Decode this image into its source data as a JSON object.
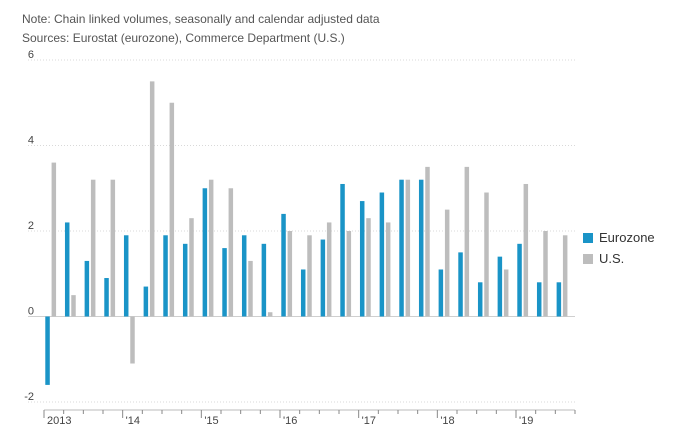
{
  "notes": {
    "line1": "Note: Chain linked volumes, seasonally and calendar adjusted data",
    "line2": "Sources: Eurostat (eurozone), Commerce Department (U.S.)"
  },
  "chart_data": {
    "type": "bar",
    "title": "",
    "xlabel": "",
    "ylabel": "",
    "ylim": [
      -2,
      6
    ],
    "yticks": [
      "-2",
      "0",
      "2",
      "4",
      "6"
    ],
    "grid": true,
    "legend_position": "right",
    "x_tick_labels": [
      "2013",
      "'14",
      "'15",
      "'16",
      "'17",
      "'18",
      "'19"
    ],
    "categories": [
      "2013 Q1",
      "2013 Q2",
      "2013 Q3",
      "2013 Q4",
      "2014 Q1",
      "2014 Q2",
      "2014 Q3",
      "2014 Q4",
      "2015 Q1",
      "2015 Q2",
      "2015 Q3",
      "2015 Q4",
      "2016 Q1",
      "2016 Q2",
      "2016 Q3",
      "2016 Q4",
      "2017 Q1",
      "2017 Q2",
      "2017 Q3",
      "2017 Q4",
      "2018 Q1",
      "2018 Q2",
      "2018 Q3",
      "2018 Q4",
      "2019 Q1",
      "2019 Q2",
      "2019 Q3"
    ],
    "series": [
      {
        "name": "Eurozone",
        "color": "#1a94c7",
        "values": [
          -1.6,
          2.2,
          1.3,
          0.9,
          1.9,
          0.7,
          1.9,
          1.7,
          3.0,
          1.6,
          1.9,
          1.7,
          2.4,
          1.1,
          1.8,
          3.1,
          2.7,
          2.9,
          3.2,
          3.2,
          1.1,
          1.5,
          0.8,
          1.4,
          1.7,
          0.8,
          0.8
        ]
      },
      {
        "name": "U.S.",
        "color": "#bdbdbd",
        "values": [
          3.6,
          0.5,
          3.2,
          3.2,
          -1.1,
          5.5,
          5.0,
          2.3,
          3.2,
          3.0,
          1.3,
          0.1,
          2.0,
          1.9,
          2.2,
          2.0,
          2.3,
          2.2,
          3.2,
          3.5,
          2.5,
          3.5,
          2.9,
          1.1,
          3.1,
          2.0,
          1.9
        ]
      }
    ]
  }
}
